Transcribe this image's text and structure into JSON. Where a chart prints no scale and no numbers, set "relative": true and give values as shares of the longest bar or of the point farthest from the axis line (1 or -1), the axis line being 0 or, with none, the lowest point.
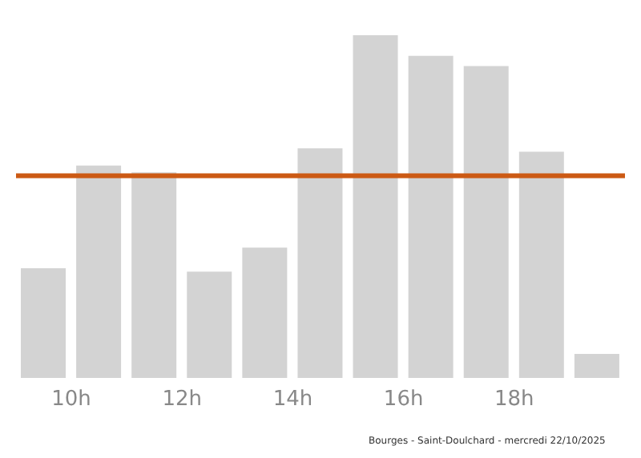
{
  "chart_data": {
    "type": "bar",
    "relative": true,
    "x": [
      9.5,
      10.5,
      11.5,
      12.5,
      13.5,
      14.5,
      15.5,
      16.5,
      17.5,
      18.5,
      19.5
    ],
    "values": [
      0.32,
      0.62,
      0.6,
      0.31,
      0.38,
      0.67,
      1,
      0.94,
      0.91,
      0.66,
      0.07
    ],
    "color": "#d3d3d3",
    "xlim": [
      9,
      20
    ],
    "xticks": [
      {
        "value": 10,
        "label": "10h"
      },
      {
        "value": 12,
        "label": "12h"
      },
      {
        "value": 14,
        "label": "14h"
      },
      {
        "value": 16,
        "label": "16h"
      },
      {
        "value": 18,
        "label": "18h"
      }
    ],
    "ref_lines": [
      {
        "axis": "y",
        "value": 0.59,
        "color": "#cc5a14"
      }
    ],
    "grid": false,
    "legend": false,
    "annotations": [
      "Bourges - Saint-Doulchard - mercredi 22/10/2025"
    ]
  }
}
